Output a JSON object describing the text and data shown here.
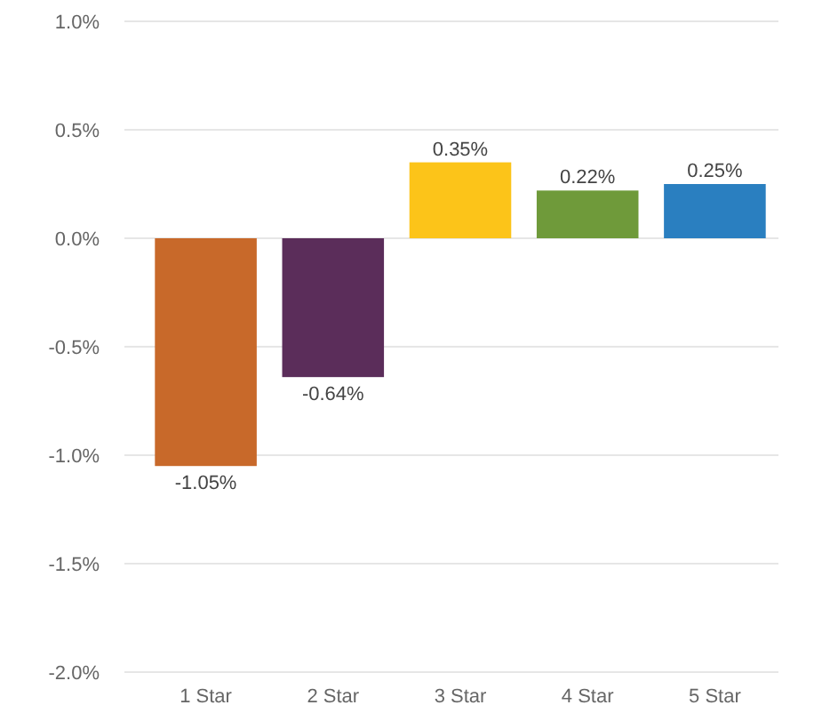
{
  "chart_data": {
    "type": "bar",
    "categories": [
      "1 Star",
      "2 Star",
      "3 Star",
      "4 Star",
      "5 Star"
    ],
    "values": [
      -1.05,
      -0.64,
      0.35,
      0.22,
      0.25
    ],
    "colors": [
      "#c8692a",
      "#5b2d5a",
      "#fcc419",
      "#6f9a3a",
      "#2a7fc0"
    ],
    "value_labels": [
      "-1.05%",
      "-0.64%",
      "0.35%",
      "0.22%",
      "0.25%"
    ],
    "ylim": [
      -2,
      1
    ],
    "yticks": [
      {
        "value": 1,
        "label": "1.0%"
      },
      {
        "value": 0.5,
        "label": "0.5%"
      },
      {
        "value": 0,
        "label": "0.0%"
      },
      {
        "value": -0.5,
        "label": "-0.5%"
      },
      {
        "value": -1,
        "label": "-1.0%"
      },
      {
        "value": -1.5,
        "label": "-1.5%"
      },
      {
        "value": -2,
        "label": "-2.0%"
      }
    ],
    "grid": true
  }
}
